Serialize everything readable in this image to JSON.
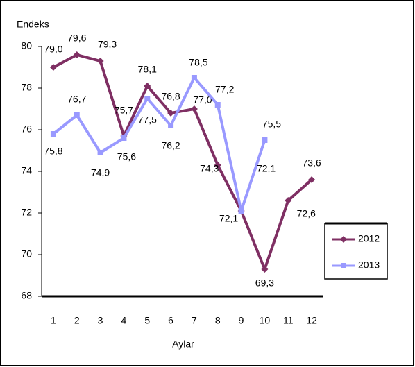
{
  "chart_data": {
    "type": "line",
    "y_axis_title": "Endeks",
    "x_axis_title": "Aylar",
    "categories": [
      "1",
      "2",
      "3",
      "4",
      "5",
      "6",
      "7",
      "8",
      "9",
      "10",
      "11",
      "12"
    ],
    "series": [
      {
        "name": "2012",
        "color": "#7f2f63",
        "marker": "diamond",
        "values": [
          79.0,
          79.6,
          79.3,
          75.7,
          78.1,
          76.8,
          77.0,
          74.3,
          72.1,
          69.3,
          72.6,
          73.6
        ],
        "value_labels": [
          "79,0",
          "79,6",
          "79,3",
          "75,7",
          "78,1",
          "76,8",
          "77,0",
          "74,3",
          "72,1",
          "69,3",
          "72,6",
          "73,6"
        ]
      },
      {
        "name": "2013",
        "color": "#9999ff",
        "marker": "square",
        "values": [
          75.8,
          76.7,
          74.9,
          75.6,
          77.5,
          76.2,
          78.5,
          77.2,
          72.1,
          75.5,
          null,
          null
        ],
        "value_labels": [
          "75,8",
          "76,7",
          "74,9",
          "75,6",
          "77,5",
          "76,2",
          "78,5",
          "77,2",
          "72,1",
          "75,5",
          null,
          null
        ]
      }
    ],
    "ylim": [
      68,
      80
    ],
    "yticks": [
      68,
      70,
      72,
      74,
      76,
      78,
      80
    ],
    "legend": "right"
  }
}
